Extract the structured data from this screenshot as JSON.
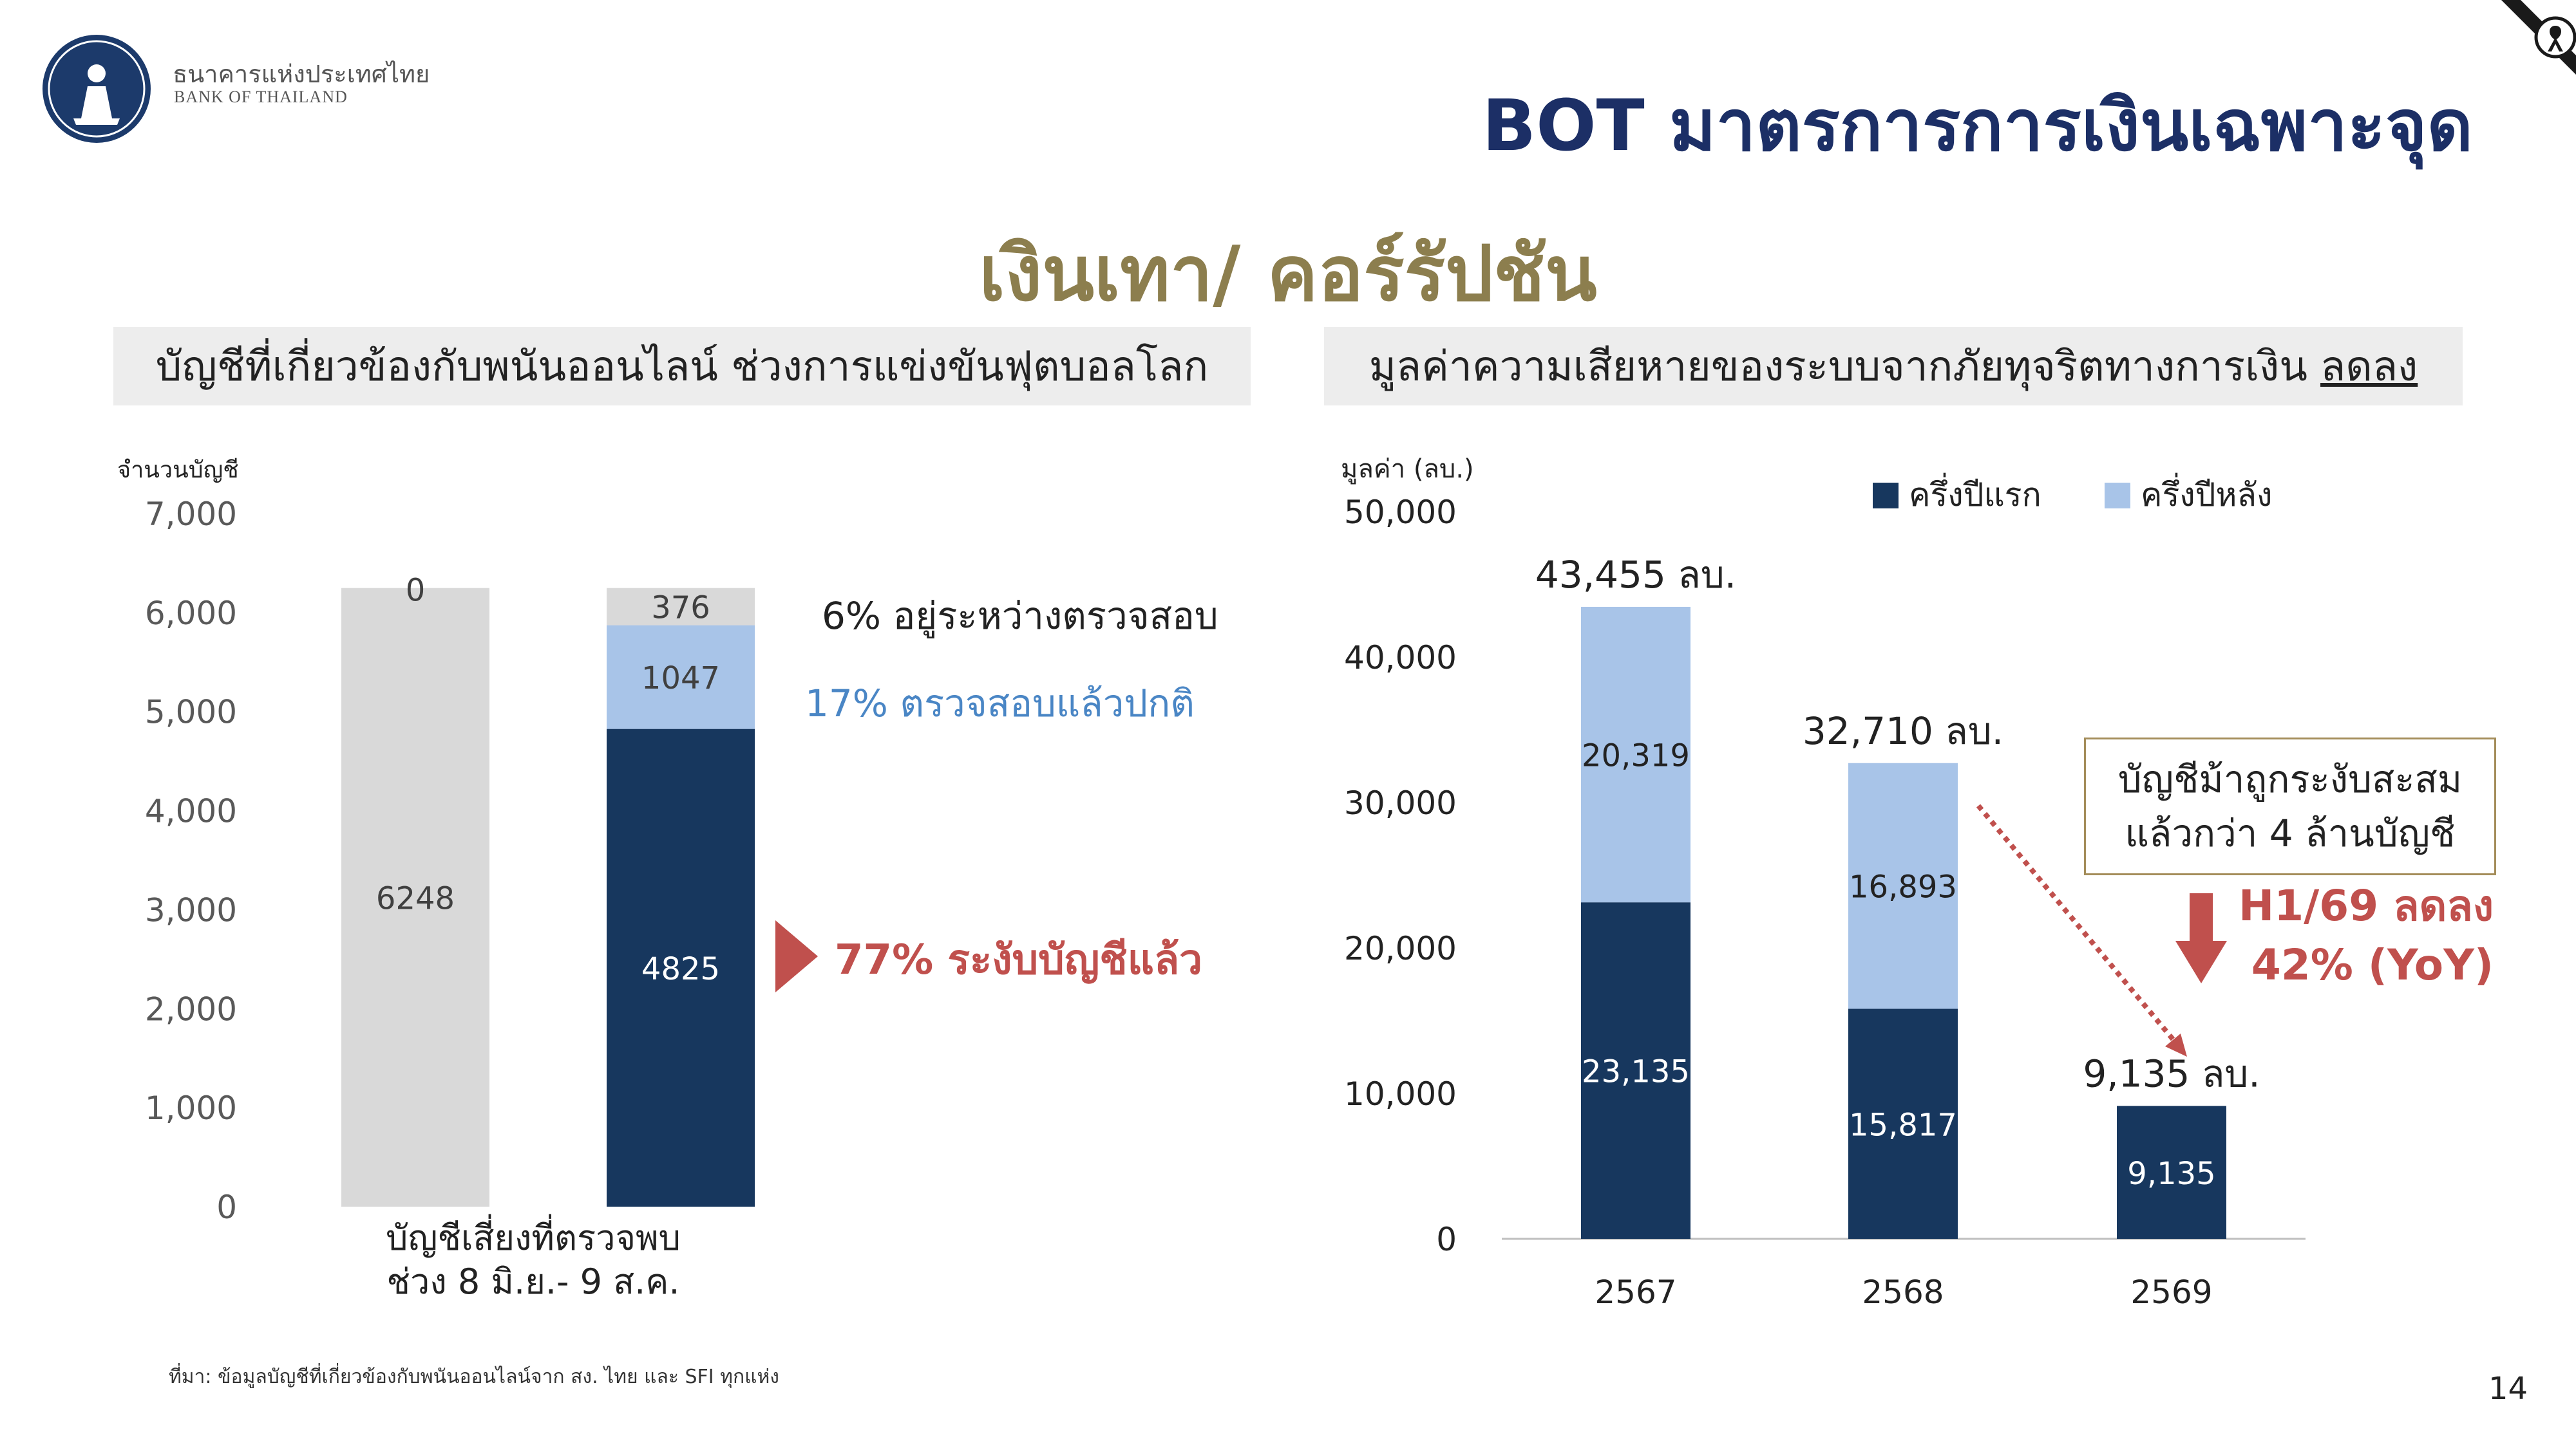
{
  "header": {
    "logo_th": "ธนาคารแห่งประเทศไทย",
    "logo_en": "BANK OF THAILAND",
    "title": "BOT มาตรการการเงินเฉพาะจุด",
    "subtitle": "เงินเทา/ คอร์รัปชัน"
  },
  "left_panel": {
    "heading": "บัญชีที่เกี่ยวข้องกับพนันออนไลน์ ช่วงการแข่งขันฟุตบอลโลก",
    "notes": {
      "pending": "6% อยู่ระหว่างตรวจสอบ",
      "normal": "17% ตรวจสอบแล้วปกติ",
      "suspended": "77% ระงับบัญชีแล้ว"
    }
  },
  "right_panel": {
    "heading": "มูลค่าความเสียหายของระบบจากภัยทุจริตทางการเงิน",
    "heading_underlined": "ลดลง",
    "callout_line1": "บัญชีม้าถูกระงับสะสม",
    "callout_line2": "แล้วกว่า 4 ล้านบัญชี",
    "h1_line1": "H1/69 ลดลง",
    "h1_line2": "42% (YoY)"
  },
  "source": "ที่มา: ข้อมูลบัญชีที่เกี่ยวข้องกับพนันออนไลน์จาก สง. ไทย และ SFI ทุกแห่ง",
  "page_number": "14",
  "colors": {
    "navy": "#17375e",
    "light_blue": "#a8c4e8",
    "grey": "#d9d9d9",
    "red": "#c0504d",
    "gold": "#8c7e4e"
  },
  "icons": {
    "corner": "mourning-ribbon-icon",
    "down_arrow": "arrow-down-icon"
  },
  "chart_data": [
    {
      "type": "bar",
      "stacked": true,
      "ylabel": "จำนวนบัญชี",
      "ylim": [
        0,
        7000
      ],
      "yticks": [
        "0",
        "1,000",
        "2,000",
        "3,000",
        "4,000",
        "5,000",
        "6,000",
        "7,000"
      ],
      "category_label_lines": [
        "บัญชีเสี่ยงที่ตรวจพบ",
        "ช่วง 8 มิ.ย.- 9 ส.ค."
      ],
      "bars": [
        {
          "segments": [
            {
              "value": 6248,
              "label": "6248",
              "color": "#d9d9d9"
            }
          ],
          "top_label": "0"
        },
        {
          "segments": [
            {
              "value": 4825,
              "label": "4825",
              "color": "#17375e"
            },
            {
              "value": 1047,
              "label": "1047",
              "color": "#a8c4e8"
            },
            {
              "value": 376,
              "label": "376",
              "color": "#d9d9d9"
            }
          ]
        }
      ]
    },
    {
      "type": "bar",
      "stacked": true,
      "ylabel": "มูลค่า (ลบ.)",
      "ylim": [
        0,
        50000
      ],
      "yticks": [
        "0",
        "10,000",
        "20,000",
        "30,000",
        "40,000",
        "50,000"
      ],
      "categories": [
        "2567",
        "2568",
        "2569"
      ],
      "series": [
        {
          "name": "ครึ่งปีแรก",
          "color": "#17375e",
          "values": [
            23135,
            15817,
            9135
          ],
          "labels": [
            "23,135",
            "15,817",
            "9,135"
          ]
        },
        {
          "name": "ครึ่งปีหลัง",
          "color": "#a8c4e8",
          "values": [
            20319,
            16893,
            0
          ],
          "labels": [
            "20,319",
            "16,893",
            ""
          ]
        }
      ],
      "totals": [
        "43,455 ลบ.",
        "32,710 ลบ.",
        "9,135 ลบ."
      ]
    }
  ]
}
